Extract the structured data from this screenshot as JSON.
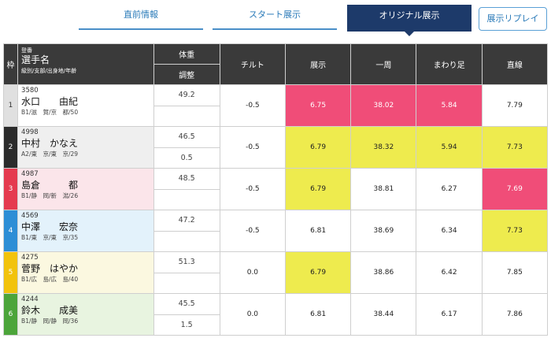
{
  "tabs": {
    "prerace": "直前情報",
    "start": "スタート展示",
    "original": "オリジナル展示",
    "replay": "展示リプレイ"
  },
  "header": {
    "waku": "枠",
    "regno": "登番",
    "name": "選手名",
    "sub": "級別/支部/出身地/年齢",
    "weight": "体重",
    "adjust": "調整",
    "tilt": "チルト",
    "tenji": "展示",
    "isshu": "一周",
    "mawari": "まわり足",
    "chokusen": "直線"
  },
  "colors": {
    "waku1": "#e0e0e0",
    "waku2": "#2b2b2b",
    "waku3": "#e53a4f",
    "waku4": "#2d8ed6",
    "waku5": "#f2c30c",
    "waku6": "#4ca53a",
    "highlight_pink": "#f04d78",
    "highlight_yellow": "#eeeb4e"
  },
  "rows": [
    {
      "waku": "1",
      "regno": "3580",
      "name": "水口　　由紀",
      "info": "B1/滋　賀/京　都/50",
      "weight": "49.2",
      "adjust": "",
      "tilt": "-0.5",
      "tenji": "6.75",
      "isshu": "38.02",
      "mawari": "5.84",
      "chokusen": "7.79"
    },
    {
      "waku": "2",
      "regno": "4998",
      "name": "中村　かなえ",
      "info": "A2/東　京/東　京/29",
      "weight": "46.5",
      "adjust": "0.5",
      "tilt": "-0.5",
      "tenji": "6.79",
      "isshu": "38.32",
      "mawari": "5.94",
      "chokusen": "7.73"
    },
    {
      "waku": "3",
      "regno": "4987",
      "name": "島倉　　　都",
      "info": "B1/静　岡/新　潟/26",
      "weight": "48.5",
      "adjust": "",
      "tilt": "-0.5",
      "tenji": "6.79",
      "isshu": "38.81",
      "mawari": "6.27",
      "chokusen": "7.69"
    },
    {
      "waku": "4",
      "regno": "4569",
      "name": "中澤　　宏奈",
      "info": "B1/東　京/東　京/35",
      "weight": "47.2",
      "adjust": "",
      "tilt": "-0.5",
      "tenji": "6.81",
      "isshu": "38.69",
      "mawari": "6.34",
      "chokusen": "7.73"
    },
    {
      "waku": "5",
      "regno": "4275",
      "name": "菅野　はやか",
      "info": "B1/広　島/広　島/40",
      "weight": "51.3",
      "adjust": "",
      "tilt": "0.0",
      "tenji": "6.79",
      "isshu": "38.86",
      "mawari": "6.42",
      "chokusen": "7.85"
    },
    {
      "waku": "6",
      "regno": "4244",
      "name": "鈴木　　成美",
      "info": "B1/静　岡/静　岡/36",
      "weight": "45.5",
      "adjust": "1.5",
      "tilt": "0.0",
      "tenji": "6.81",
      "isshu": "38.44",
      "mawari": "6.17",
      "chokusen": "7.86"
    }
  ]
}
